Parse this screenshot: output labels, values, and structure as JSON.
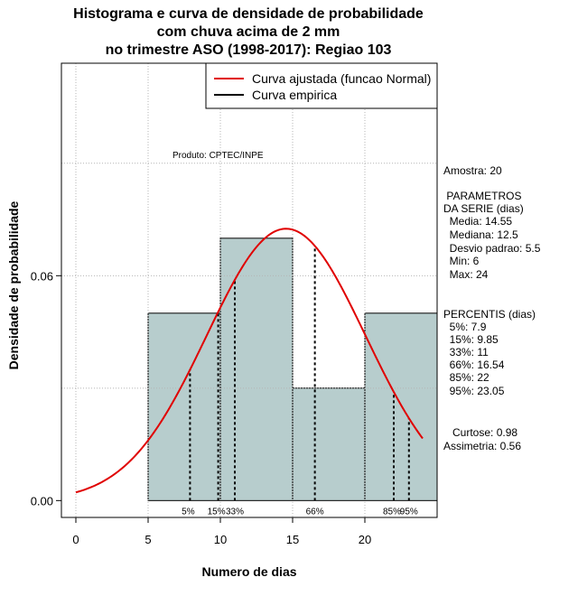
{
  "chart_data": {
    "type": "bar",
    "title_lines": [
      "Histograma e curva de densidade de probabilidade",
      "com chuva acima de 2 mm",
      "no trimestre ASO (1998-2017): Regiao 103"
    ],
    "xlabel": "Numero de dias",
    "ylabel": "Densidade de probabilidade",
    "xlim": [
      -1,
      25
    ],
    "ylim": [
      -0.0045,
      0.1167
    ],
    "x_ticks": [
      0,
      5,
      10,
      15,
      20
    ],
    "y_ticks": [
      0.0,
      0.06
    ],
    "y_tick_labels": [
      "0.00",
      "0.06"
    ],
    "grid": true,
    "histogram": {
      "bins": [
        [
          5,
          10
        ],
        [
          10,
          15
        ],
        [
          15,
          20
        ],
        [
          20,
          25
        ]
      ],
      "values": [
        0.05,
        0.07,
        0.03,
        0.05
      ],
      "fill": "#b7cdcd"
    },
    "fitted_curve": {
      "name": "Curva ajustada (funcao Normal)",
      "distribution": "normal",
      "mean": 14.55,
      "sd": 5.5,
      "x_range": [
        0,
        24
      ],
      "color": "#e00000"
    },
    "empirical_curve": {
      "name": "Curva empirica",
      "color": "#000000"
    },
    "percentile_markers": [
      {
        "label": "5%",
        "x": 7.9
      },
      {
        "label": "15%",
        "x": 9.85
      },
      {
        "label": "33%",
        "x": 11
      },
      {
        "label": "66%",
        "x": 16.54
      },
      {
        "label": "85%",
        "x": 22
      },
      {
        "label": "95%",
        "x": 23.05
      }
    ],
    "product_label": "Produto: CPTEC/INPE",
    "legend_position": "top-right"
  },
  "stats": {
    "amostra": "Amostra: 20",
    "param_title": " PARAMETROS",
    "param_subtitle": "DA SERIE (dias)",
    "media": "  Media: 14.55",
    "mediana": "  Mediana: 12.5",
    "desvio": "  Desvio padrao: 5.5",
    "min": "  Min: 6",
    "max": "  Max: 24",
    "perc_title": "PERCENTIS (dias)",
    "p5": "  5%: 7.9",
    "p15": "  15%: 9.85",
    "p33": "  33%: 11",
    "p66": "  66%: 16.54",
    "p85": "  85%: 22",
    "p95": "  95%: 23.05",
    "curtose": "   Curtose: 0.98",
    "assimetria": "Assimetria: 0.56"
  }
}
